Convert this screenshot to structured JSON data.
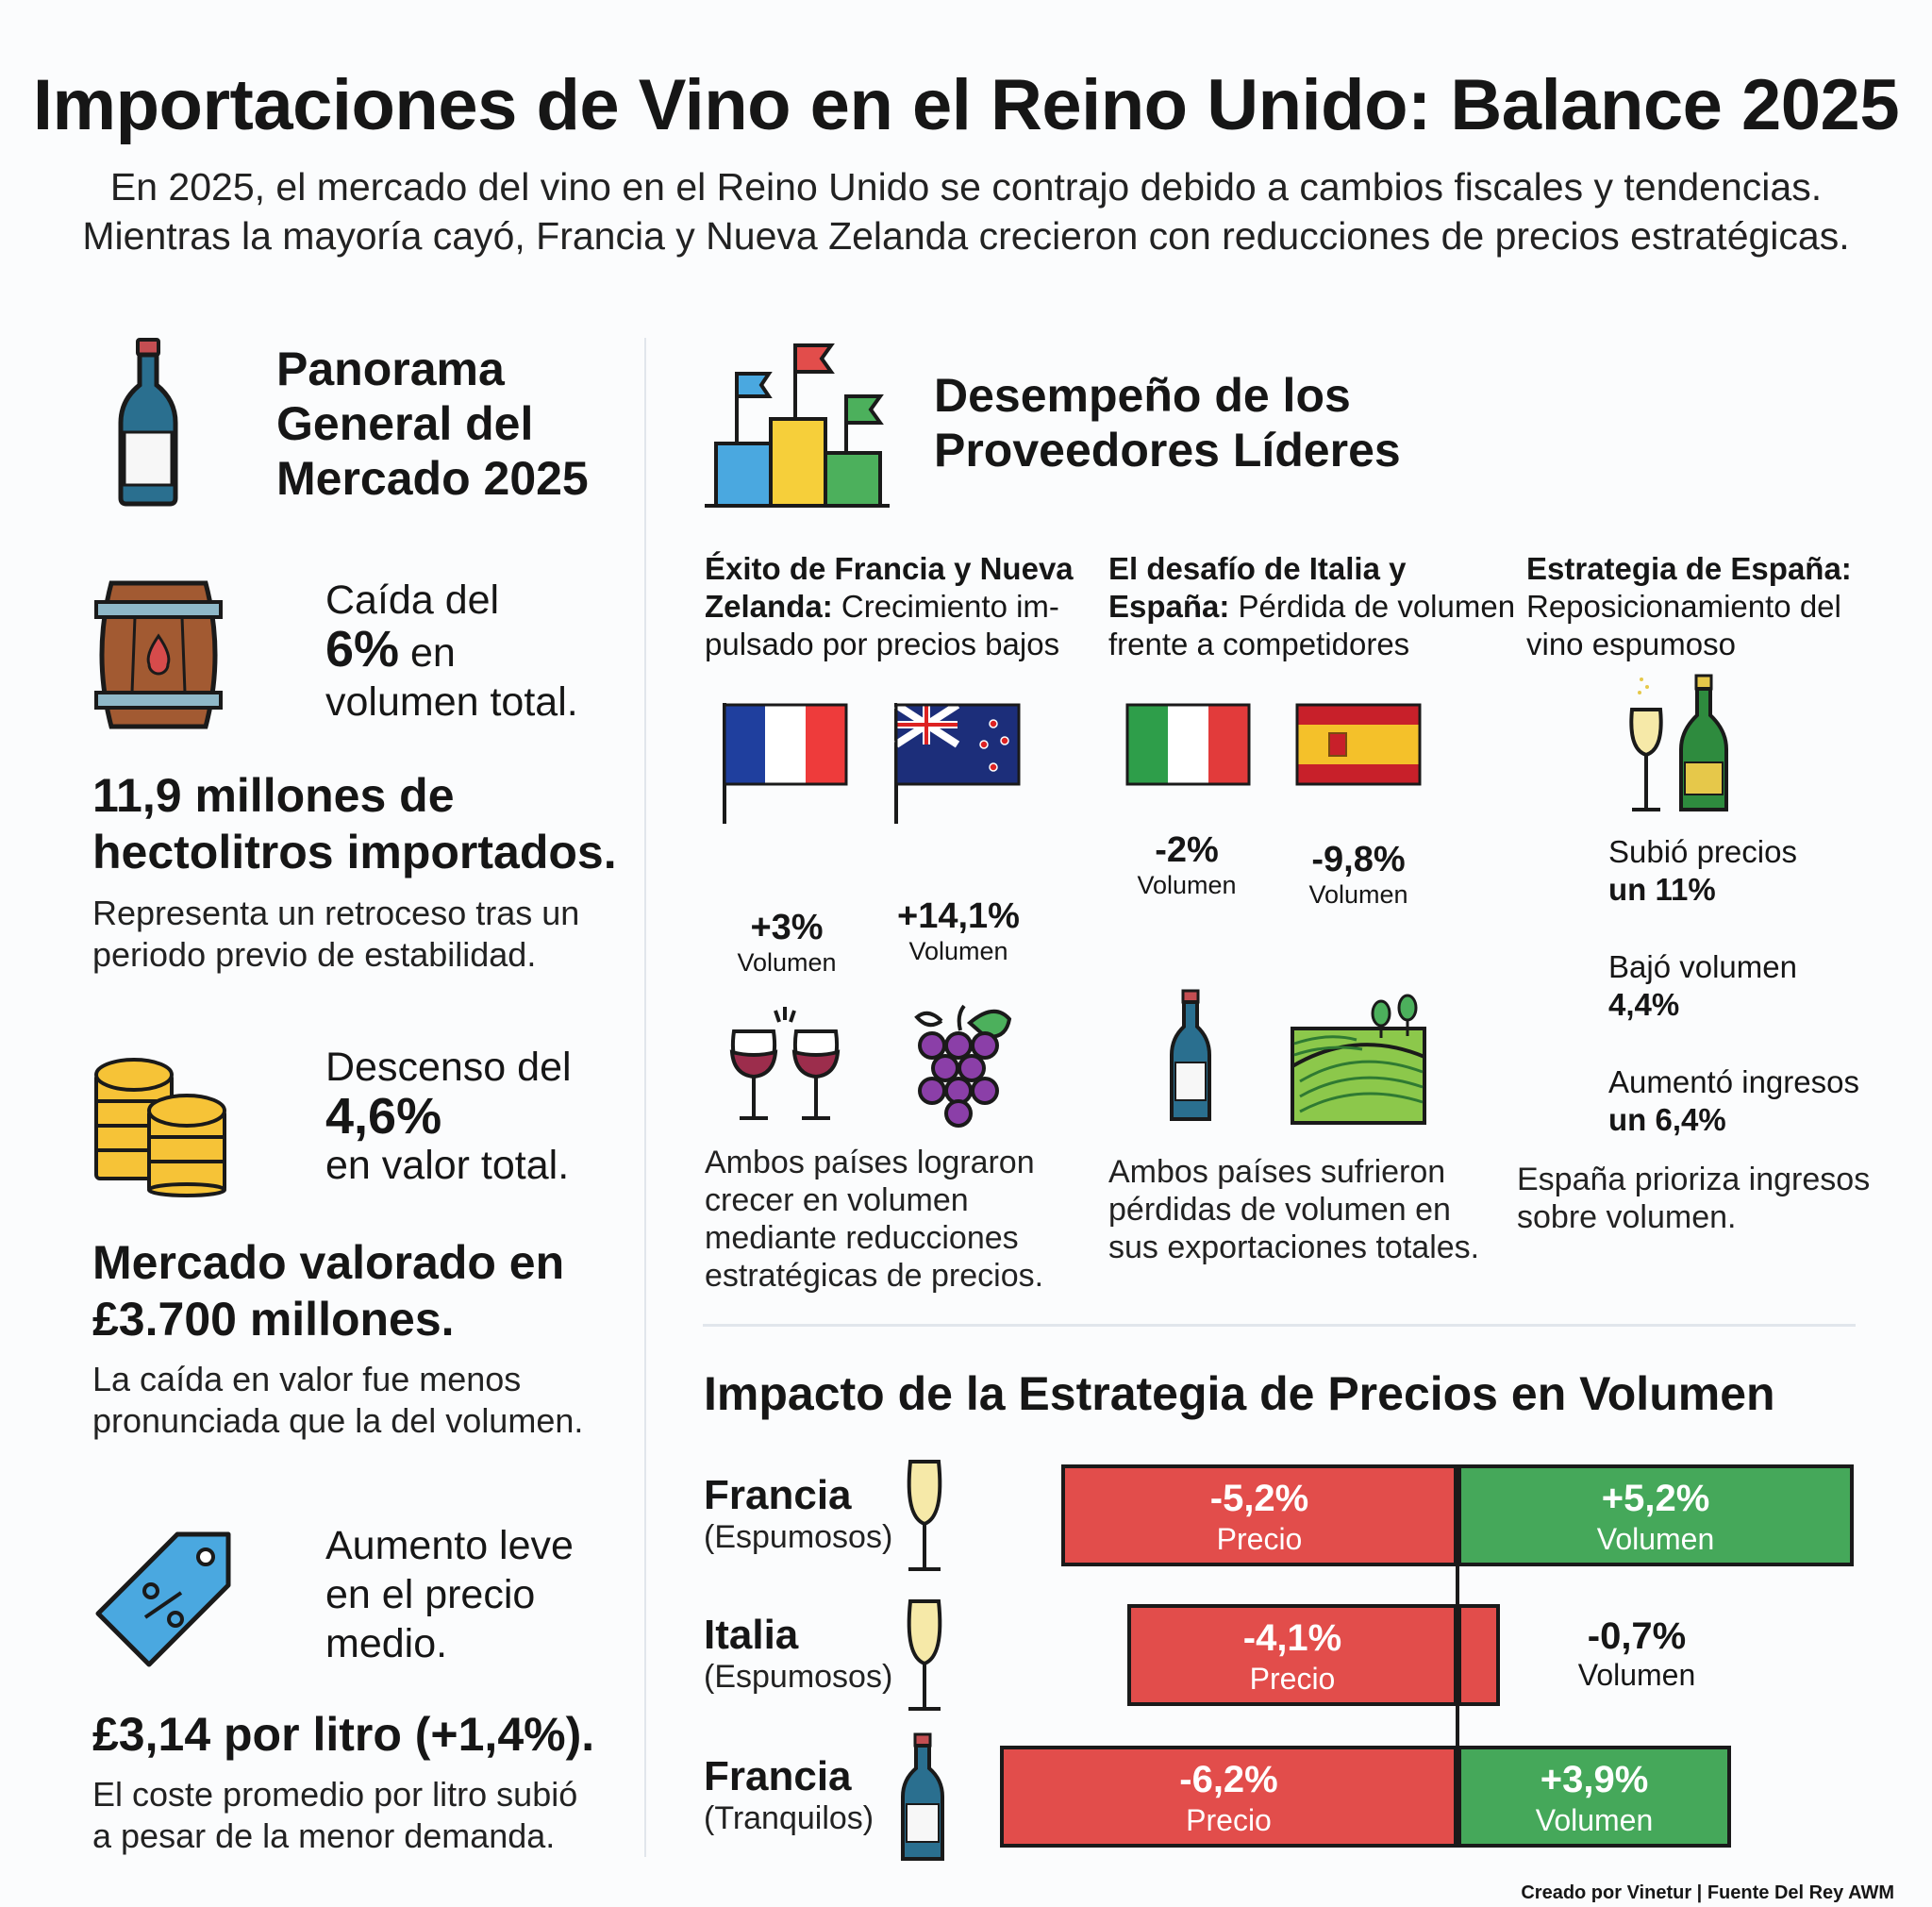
{
  "header": {
    "title": "Importaciones de Vino en el Reino Unido: Balance 2025",
    "subtitle_line1": "En 2025, el mercado del vino en el Reino Unido se contrajo debido a cambios fiscales y tendencias.",
    "subtitle_line2": "Mientras la mayoría cayó, Francia y Nueva Zelanda crecieron con reducciones de precios estratégicas."
  },
  "overview": {
    "heading_line1": "Panorama",
    "heading_line2": "General del",
    "heading_line3": "Mercado 2025",
    "volume": {
      "pre": "Caída del",
      "big": "6%",
      "mid": " en",
      "post": "volumen total.",
      "headline_line1": "11,9 millones de",
      "headline_line2": "hectolitros importados.",
      "desc_line1": "Representa un retroceso tras un",
      "desc_line2": "periodo previo de estabilidad."
    },
    "value": {
      "pre": "Descenso del",
      "big": "4,6%",
      "post": "en valor total.",
      "headline_line1": "Mercado valorado en",
      "headline_line2": "£3.700 millones.",
      "desc_line1": "La caída en valor fue menos",
      "desc_line2": "pronunciada que la del volumen."
    },
    "price": {
      "line1": "Aumento leve",
      "line2": "en el precio",
      "line3": "medio.",
      "headline": "£3,14 por litro (+1,4%).",
      "desc_line1": "El coste promedio por litro subió",
      "desc_line2": "a pesar de la menor demanda."
    }
  },
  "suppliers": {
    "heading_line1": "Desempeño de los",
    "heading_line2": "Proveedores Líderes",
    "col1": {
      "bold1": "Éxito de Francia y Nueva",
      "bold2": "Zelanda:",
      "rest2": " Crecimiento im-",
      "line3": "pulsado por precios bajos",
      "france_pct": "+3%",
      "france_label": "Volumen",
      "nz_pct": "+14,1%",
      "nz_label": "Volumen",
      "desc": [
        "Ambos países lograron",
        "crecer en volumen",
        "mediante reducciones",
        "estratégicas de precios."
      ]
    },
    "col2": {
      "bold1": "El desafío de Italia y",
      "bold2": "España:",
      "rest2": " Pérdida de volumen",
      "line3": "frente a competidores",
      "italy_pct": "-2%",
      "italy_label": "Volumen",
      "spain_pct": "-9,8%",
      "spain_label": "Volumen",
      "desc": [
        "Ambos países sufrieron",
        "pérdidas de volumen en",
        "sus exportaciones totales."
      ]
    },
    "col3": {
      "bold1": "Estrategia de España:",
      "line2": "Reposicionamiento del",
      "line3": "vino espumoso",
      "s1_line1": "Subió precios",
      "s1_line2": "un 11%",
      "s2_line1": "Bajó volumen",
      "s2_line2": "4,4%",
      "s3_line1": "Aumentó ingresos",
      "s3_line2": "un 6,4%",
      "desc": [
        "España prioriza ingresos",
        "sobre volumen."
      ]
    }
  },
  "impact": {
    "heading": "Impacto de la Estrategia de Precios en Volumen",
    "rows": [
      {
        "name": "Francia",
        "sub": "(Espumosos)",
        "price": "-5,2%",
        "price_label": "Precio",
        "volume": "+5,2%",
        "volume_label": "Volumen"
      },
      {
        "name": "Italia",
        "sub": "(Espumosos)",
        "price": "-4,1%",
        "price_label": "Precio",
        "volume": "-0,7%",
        "volume_label": "Volumen"
      },
      {
        "name": "Francia",
        "sub": "(Tranquilos)",
        "price": "-6,2%",
        "price_label": "Precio",
        "volume": "+3,9%",
        "volume_label": "Volumen"
      }
    ]
  },
  "footer": {
    "credit": "Creado por Vinetur | Fuente Del Rey AWM"
  },
  "colors": {
    "negative": "#e24d4b",
    "positive": "#45a85a",
    "bottle": "#2a6f8f"
  }
}
